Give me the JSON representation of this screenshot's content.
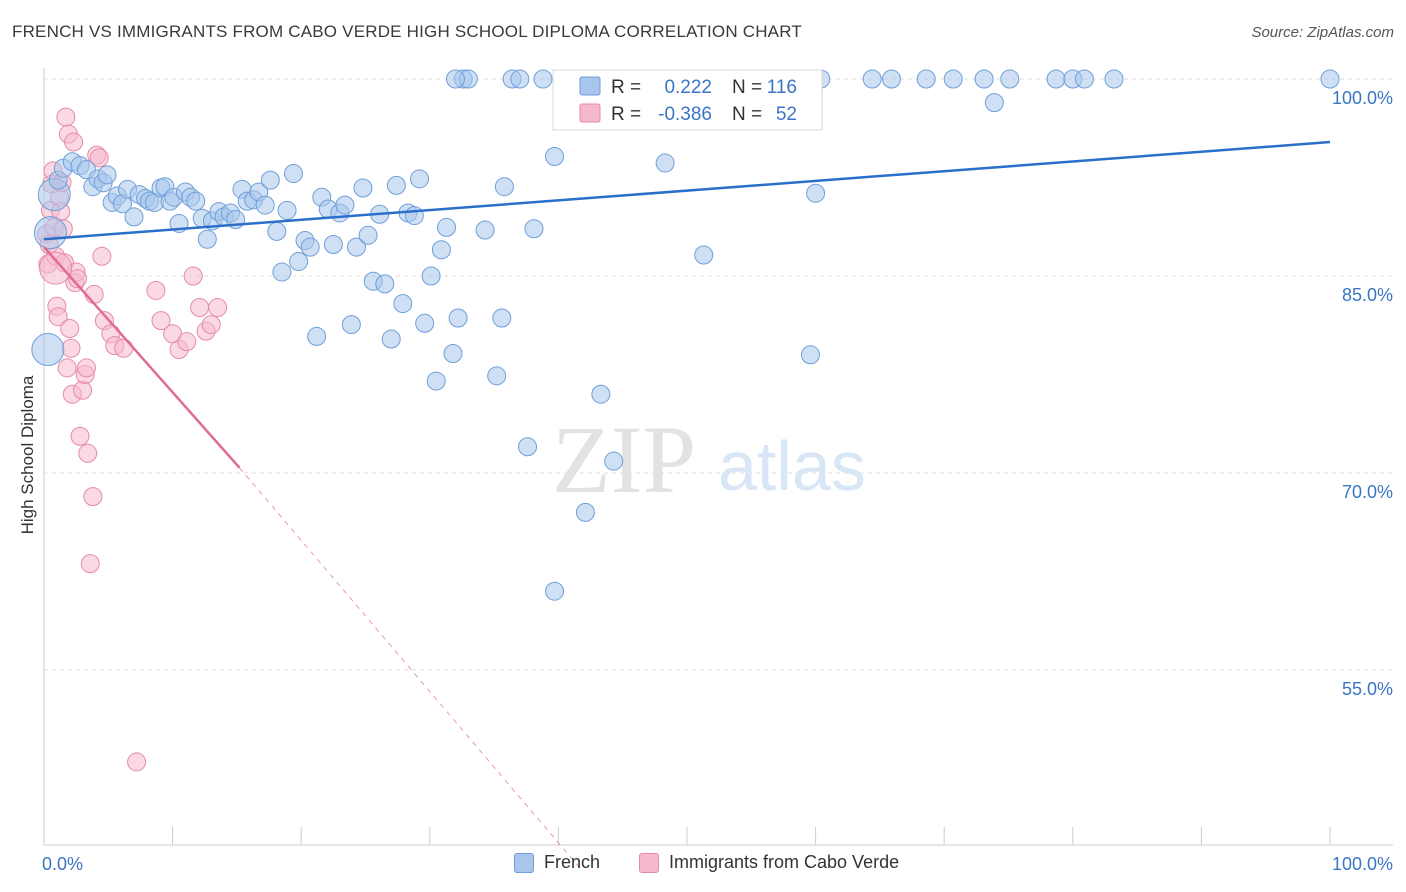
{
  "title": "FRENCH VS IMMIGRANTS FROM CABO VERDE HIGH SCHOOL DIPLOMA CORRELATION CHART",
  "source": "Source: ZipAtlas.com",
  "watermark": {
    "zip": "ZIP",
    "atlas": "atlas"
  },
  "colors": {
    "french_fill": "#a8c6ec",
    "french_stroke": "#6f9fd8",
    "french_line": "#2a6fc9",
    "cabo_fill": "#f6b9cc",
    "cabo_stroke": "#e68aa8",
    "cabo_line": "#e06c96",
    "tick_label": "#3a76c4",
    "grid": "#dddddd"
  },
  "legend": {
    "french": {
      "r_label": "R =",
      "r_value": "0.222",
      "n_label": "N =",
      "n_value": "116"
    },
    "cabo": {
      "r_label": "R =",
      "r_value": "-0.386",
      "n_label": "N =",
      "n_value": "52"
    }
  },
  "bottom_legend": {
    "french": "French",
    "cabo": "Immigrants from Cabo Verde"
  },
  "chart_data": {
    "type": "scatter",
    "title": "FRENCH VS IMMIGRANTS FROM CABO VERDE HIGH SCHOOL DIPLOMA CORRELATION CHART",
    "xlabel": "",
    "ylabel": "High School Diploma",
    "xlim": [
      0,
      100
    ],
    "ylim": [
      40,
      101.5
    ],
    "x_tick_labels": [
      "0.0%",
      "100.0%"
    ],
    "y_ticks": [
      100,
      85,
      70,
      55
    ],
    "y_tick_labels": [
      "100.0%",
      "85.0%",
      "70.0%",
      "55.0%"
    ],
    "grid": "horizontal dashed",
    "series": [
      {
        "name": "French",
        "points": [
          [
            0.3,
            79.4
          ],
          [
            0.5,
            88.3
          ],
          [
            0.8,
            91.2
          ],
          [
            1.1,
            92.3
          ],
          [
            1.5,
            93.2
          ],
          [
            2.2,
            93.7
          ],
          [
            2.8,
            93.4
          ],
          [
            3.3,
            93.1
          ],
          [
            3.8,
            91.8
          ],
          [
            4.2,
            92.4
          ],
          [
            4.6,
            92.1
          ],
          [
            4.9,
            92.7
          ],
          [
            5.3,
            90.6
          ],
          [
            5.7,
            91.1
          ],
          [
            6.1,
            90.5
          ],
          [
            6.5,
            91.6
          ],
          [
            7.0,
            89.5
          ],
          [
            7.4,
            91.2
          ],
          [
            7.9,
            90.9
          ],
          [
            8.2,
            90.7
          ],
          [
            8.6,
            90.6
          ],
          [
            9.1,
            91.7
          ],
          [
            9.4,
            91.8
          ],
          [
            9.8,
            90.7
          ],
          [
            10.1,
            91.0
          ],
          [
            10.5,
            89.0
          ],
          [
            11.0,
            91.4
          ],
          [
            11.4,
            91.0
          ],
          [
            11.8,
            90.7
          ],
          [
            12.3,
            89.4
          ],
          [
            12.7,
            87.8
          ],
          [
            13.1,
            89.2
          ],
          [
            13.6,
            89.9
          ],
          [
            14.0,
            89.5
          ],
          [
            14.5,
            89.8
          ],
          [
            14.9,
            89.3
          ],
          [
            15.4,
            91.6
          ],
          [
            15.8,
            90.7
          ],
          [
            16.3,
            90.8
          ],
          [
            16.7,
            91.4
          ],
          [
            17.2,
            90.4
          ],
          [
            17.6,
            92.3
          ],
          [
            18.1,
            88.4
          ],
          [
            18.5,
            85.3
          ],
          [
            18.9,
            90.0
          ],
          [
            19.4,
            92.8
          ],
          [
            19.8,
            86.1
          ],
          [
            20.3,
            87.7
          ],
          [
            20.7,
            87.2
          ],
          [
            21.2,
            80.4
          ],
          [
            21.6,
            91.0
          ],
          [
            22.1,
            90.1
          ],
          [
            22.5,
            87.4
          ],
          [
            23.0,
            89.8
          ],
          [
            23.4,
            90.4
          ],
          [
            23.9,
            81.3
          ],
          [
            24.3,
            87.2
          ],
          [
            24.8,
            91.7
          ],
          [
            25.2,
            88.1
          ],
          [
            25.6,
            84.6
          ],
          [
            26.1,
            89.7
          ],
          [
            26.5,
            84.4
          ],
          [
            27.0,
            80.2
          ],
          [
            27.4,
            91.9
          ],
          [
            27.9,
            82.9
          ],
          [
            28.3,
            89.8
          ],
          [
            28.8,
            89.6
          ],
          [
            29.2,
            92.4
          ],
          [
            29.6,
            81.4
          ],
          [
            30.1,
            85.0
          ],
          [
            30.5,
            77.0
          ],
          [
            30.9,
            87.0
          ],
          [
            31.3,
            88.7
          ],
          [
            31.8,
            79.1
          ],
          [
            32.2,
            81.8
          ],
          [
            32.6,
            100.0
          ],
          [
            33.0,
            100.0
          ],
          [
            34.3,
            88.5
          ],
          [
            35.2,
            77.4
          ],
          [
            35.6,
            81.8
          ],
          [
            35.8,
            91.8
          ],
          [
            36.4,
            100.0
          ],
          [
            37.0,
            100.0
          ],
          [
            37.6,
            72.0
          ],
          [
            38.1,
            88.6
          ],
          [
            38.8,
            100.0
          ],
          [
            39.7,
            94.1
          ],
          [
            39.7,
            61.0
          ],
          [
            40.6,
            100.0
          ],
          [
            42.1,
            67.0
          ],
          [
            43.3,
            76.0
          ],
          [
            44.3,
            70.9
          ],
          [
            45.3,
            100.0
          ],
          [
            46.1,
            100.0
          ],
          [
            48.3,
            93.6
          ],
          [
            51.3,
            86.6
          ],
          [
            56.8,
            100.0
          ],
          [
            59.6,
            79.0
          ],
          [
            60.4,
            100.0
          ],
          [
            64.4,
            100.0
          ],
          [
            65.9,
            100.0
          ],
          [
            68.6,
            100.0
          ],
          [
            70.7,
            100.0
          ],
          [
            73.1,
            100.0
          ],
          [
            73.9,
            98.2
          ],
          [
            75.1,
            100.0
          ],
          [
            78.7,
            100.0
          ],
          [
            80.0,
            100.0
          ],
          [
            80.9,
            100.0
          ],
          [
            83.2,
            100.0
          ],
          [
            100.0,
            100.0
          ],
          [
            32.0,
            100.0
          ],
          [
            43.2,
            100.0
          ],
          [
            47.6,
            100.0
          ],
          [
            53.9,
            100.0
          ],
          [
            60.0,
            91.3
          ]
        ],
        "trend": {
          "x": [
            0,
            100
          ],
          "y": [
            87.8,
            95.2
          ]
        }
      },
      {
        "name": "Immigrants from Cabo Verde",
        "points": [
          [
            0.2,
            88.2
          ],
          [
            0.3,
            85.9
          ],
          [
            0.4,
            87.4
          ],
          [
            0.5,
            90.0
          ],
          [
            0.6,
            92.0
          ],
          [
            0.7,
            93.0
          ],
          [
            0.8,
            88.7
          ],
          [
            0.9,
            86.5
          ],
          [
            1.0,
            82.7
          ],
          [
            1.1,
            81.9
          ],
          [
            1.2,
            91.0
          ],
          [
            1.3,
            89.9
          ],
          [
            1.4,
            92.1
          ],
          [
            1.5,
            88.6
          ],
          [
            1.6,
            86.0
          ],
          [
            1.7,
            97.1
          ],
          [
            1.8,
            78.0
          ],
          [
            1.9,
            95.8
          ],
          [
            2.0,
            81.0
          ],
          [
            2.1,
            79.5
          ],
          [
            2.2,
            76.0
          ],
          [
            2.3,
            95.2
          ],
          [
            2.4,
            84.5
          ],
          [
            2.5,
            85.3
          ],
          [
            2.6,
            84.8
          ],
          [
            2.8,
            72.8
          ],
          [
            3.0,
            76.3
          ],
          [
            3.2,
            77.5
          ],
          [
            3.3,
            78.0
          ],
          [
            3.4,
            71.5
          ],
          [
            3.6,
            63.1
          ],
          [
            3.8,
            68.2
          ],
          [
            3.9,
            83.6
          ],
          [
            4.1,
            94.2
          ],
          [
            4.3,
            94.0
          ],
          [
            4.5,
            86.5
          ],
          [
            4.7,
            81.6
          ],
          [
            5.2,
            80.6
          ],
          [
            5.5,
            79.7
          ],
          [
            6.2,
            79.5
          ],
          [
            7.2,
            48.0
          ],
          [
            8.7,
            83.9
          ],
          [
            9.1,
            81.6
          ],
          [
            10.0,
            80.6
          ],
          [
            10.5,
            79.4
          ],
          [
            11.1,
            80.0
          ],
          [
            11.6,
            85.0
          ],
          [
            12.1,
            82.6
          ],
          [
            12.6,
            80.8
          ],
          [
            13.0,
            81.3
          ],
          [
            13.5,
            82.6
          ],
          [
            0.9,
            85.6
          ]
        ],
        "trend": {
          "x": [
            0,
            15.2
          ],
          "y": [
            87.2,
            70.4
          ]
        },
        "trend_extended": {
          "x": [
            15.2,
            41.6
          ],
          "y": [
            70.4,
            40
          ]
        }
      }
    ]
  }
}
